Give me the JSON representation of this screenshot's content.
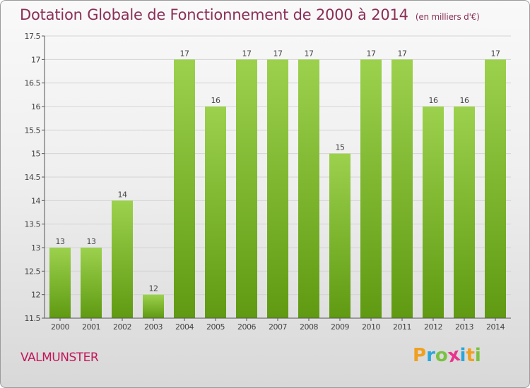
{
  "title": "Dotation Globale de Fonctionnement de 2000 à 2014",
  "subtitle": "(en milliers d'€)",
  "commune": "VALMUNSTER",
  "brand": {
    "letters": [
      "P",
      "r",
      "o",
      "x",
      "i",
      "t",
      "i"
    ],
    "colors": [
      "#f0a020",
      "#2aa6d9",
      "#7ac142",
      "#e8348c",
      "#2aa6d9",
      "#f0a020",
      "#7ac142"
    ]
  },
  "colors": {
    "bar_light": "#9cd14d",
    "bar_dark": "#5f9a12",
    "title": "#8a2f57",
    "commune": "#c2185b"
  },
  "chart_data": {
    "type": "bar",
    "title": "Dotation Globale de Fonctionnement de 2000 à 2014",
    "xlabel": "",
    "ylabel": "",
    "ylim": [
      11.5,
      17.5
    ],
    "yticks": [
      11.5,
      12,
      12.5,
      13,
      13.5,
      14,
      14.5,
      15,
      15.5,
      16,
      16.5,
      17,
      17.5
    ],
    "ytick_labels": [
      "11.5",
      "12",
      "12.5",
      "13",
      "13.5",
      "14",
      "14.5",
      "15",
      "15.5",
      "16",
      "16.5",
      "17",
      "17.5"
    ],
    "grid": true,
    "categories": [
      "2000",
      "2001",
      "2002",
      "2003",
      "2004",
      "2005",
      "2006",
      "2007",
      "2008",
      "2009",
      "2010",
      "2011",
      "2012",
      "2013",
      "2014"
    ],
    "values": [
      13,
      13,
      14,
      12,
      17,
      16,
      17,
      17,
      17,
      15,
      17,
      17,
      16,
      16,
      17
    ],
    "labels": [
      "13",
      "13",
      "14",
      "12",
      "17",
      "16",
      "17",
      "17",
      "17",
      "15",
      "17",
      "17",
      "16",
      "16",
      "17"
    ]
  }
}
